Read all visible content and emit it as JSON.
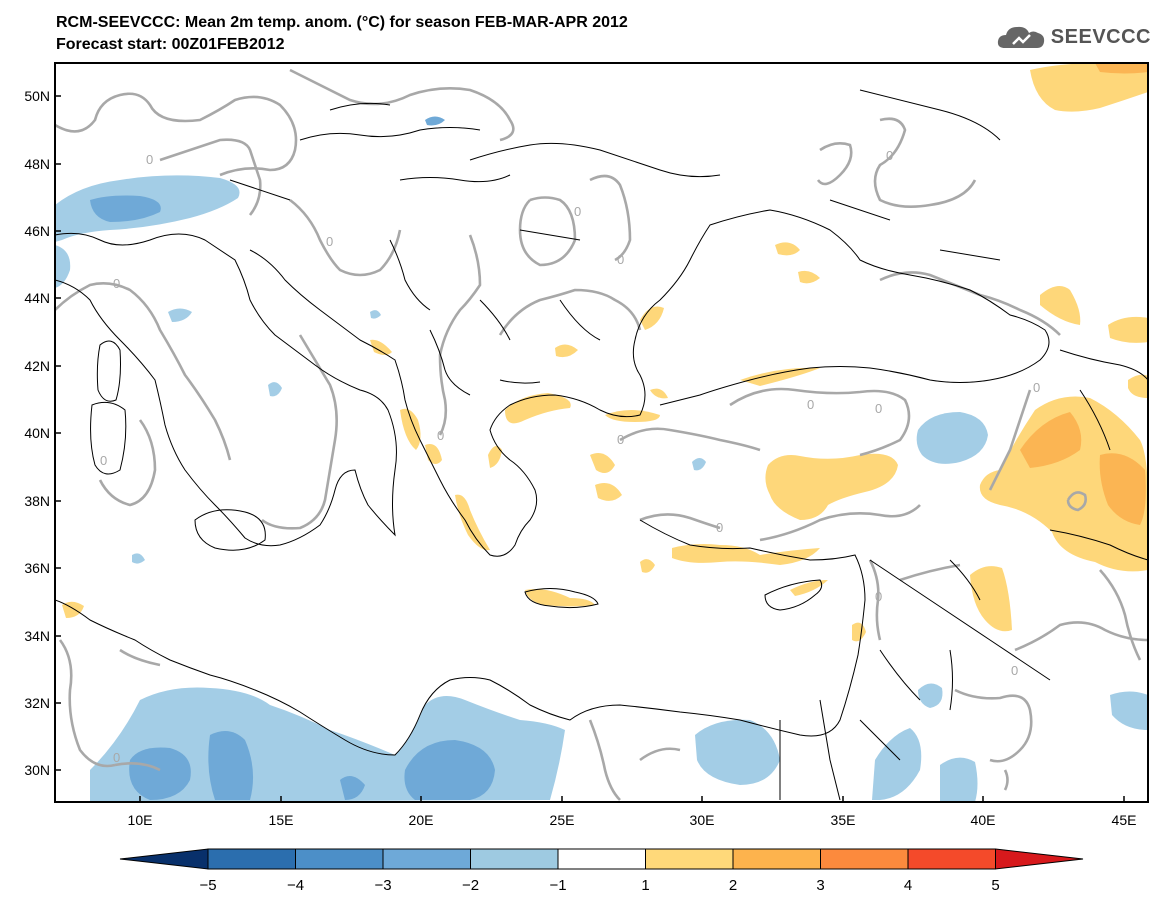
{
  "header": {
    "title_line1": "RCM-SEEVCCC: Mean 2m temp. anom. (°C) for season FEB-MAR-APR 2012",
    "title_line2": "Forecast start: 00Z01FEB2012",
    "logo_text": "SEEVCCC"
  },
  "map": {
    "lat_ticks": [
      "50N",
      "48N",
      "46N",
      "44N",
      "42N",
      "40N",
      "38N",
      "36N",
      "34N",
      "32N",
      "30N"
    ],
    "lon_ticks": [
      "10E",
      "15E",
      "20E",
      "25E",
      "30E",
      "35E",
      "40E",
      "45E"
    ],
    "contour_label": "0"
  },
  "colorbar": {
    "labels": [
      "−5",
      "−4",
      "−3",
      "−2",
      "−1",
      "1",
      "2",
      "3",
      "4",
      "5"
    ],
    "colors": [
      "#08306b",
      "#2b6eae",
      "#4c8fc8",
      "#6ea9d8",
      "#9ecae1",
      "#ffffff",
      "#ffd97a",
      "#fdb34d",
      "#fc8a3d",
      "#f44a2a",
      "#d7191c"
    ]
  },
  "colors": {
    "blue_light": "#a3cde6",
    "blue_mid": "#6fa9d7",
    "orange_light": "#fed77a",
    "orange_mid": "#fbb553",
    "contour": "#a8a8a8"
  }
}
